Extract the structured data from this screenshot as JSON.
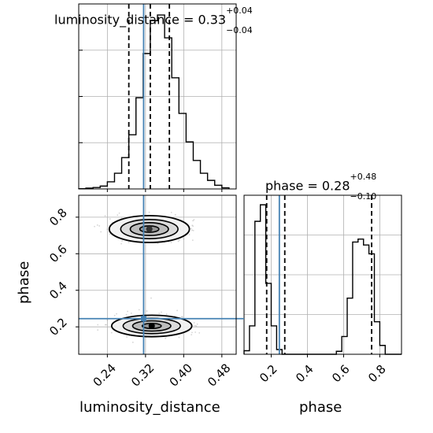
{
  "chart_data": [
    {
      "type": "histogram",
      "title": {
        "param": "luminosity_distance",
        "value": "0.33",
        "plus": "+0.04",
        "minus": "−0.04"
      },
      "xlim": [
        0.18,
        0.51
      ],
      "bins": [
        0.18,
        0.195,
        0.21,
        0.225,
        0.24,
        0.255,
        0.27,
        0.285,
        0.3,
        0.315,
        0.33,
        0.345,
        0.36,
        0.375,
        0.39,
        0.405,
        0.42,
        0.435,
        0.45,
        0.465,
        0.48,
        0.495
      ],
      "counts": [
        1,
        3,
        5,
        10,
        25,
        55,
        110,
        190,
        320,
        475,
        590,
        610,
        530,
        390,
        265,
        165,
        100,
        55,
        30,
        13,
        4
      ],
      "truth": 0.316,
      "quantiles": [
        0.285,
        0.33,
        0.37
      ],
      "yticks_count": 3
    },
    {
      "type": "histogram",
      "title": {
        "param": "phase",
        "value": "0.28",
        "plus": "+0.48",
        "minus": "−0.10"
      },
      "xlim": [
        0.05,
        0.92
      ],
      "bins": [
        0.05,
        0.08,
        0.11,
        0.14,
        0.17,
        0.2,
        0.23,
        0.26,
        0.29,
        0.32,
        0.35,
        0.38,
        0.41,
        0.44,
        0.47,
        0.5,
        0.53,
        0.56,
        0.59,
        0.62,
        0.65,
        0.68,
        0.71,
        0.74,
        0.77,
        0.8,
        0.83,
        0.86,
        0.89,
        0.92
      ],
      "counts": [
        6,
        48,
        225,
        253,
        120,
        48,
        8,
        0,
        0,
        0,
        0,
        0,
        0,
        0,
        0,
        0,
        0,
        5,
        30,
        95,
        190,
        195,
        185,
        170,
        55,
        15,
        0,
        0,
        0
      ],
      "truth": 0.245,
      "quantiles": [
        0.175,
        0.275,
        0.755
      ],
      "xlabel": "phase",
      "xticks": [
        0.2,
        0.4,
        0.6,
        0.8
      ],
      "xtick_labels": [
        "0.2",
        "0.4",
        "0.6",
        "0.8"
      ]
    },
    {
      "type": "scatter-contour",
      "xlabel": "luminosity_distance",
      "ylabel": "phase",
      "xlim": [
        0.18,
        0.51
      ],
      "ylim": [
        0.05,
        0.92
      ],
      "xticks": [
        0.24,
        0.32,
        0.4,
        0.48
      ],
      "xtick_labels": [
        "0.24",
        "0.32",
        "0.40",
        "0.48"
      ],
      "yticks": [
        0.2,
        0.4,
        0.6,
        0.8
      ],
      "ytick_labels": [
        "0.2",
        "0.4",
        "0.6",
        "0.8"
      ],
      "truth": [
        0.316,
        0.245
      ],
      "modes": [
        {
          "center": [
            0.333,
            0.205
          ],
          "sx": 0.04,
          "sy": 0.028,
          "weight": 0.55
        },
        {
          "center": [
            0.328,
            0.735
          ],
          "sx": 0.04,
          "sy": 0.035,
          "weight": 0.45
        }
      ]
    }
  ],
  "colors": {
    "truth": "#4682b4",
    "hist": "#000000",
    "grid": "#b0b0b0",
    "scatter": "#888888",
    "fill_levels": [
      "#f2f2f2",
      "#d8d8d8",
      "#b8b8b8",
      "#909090"
    ]
  }
}
